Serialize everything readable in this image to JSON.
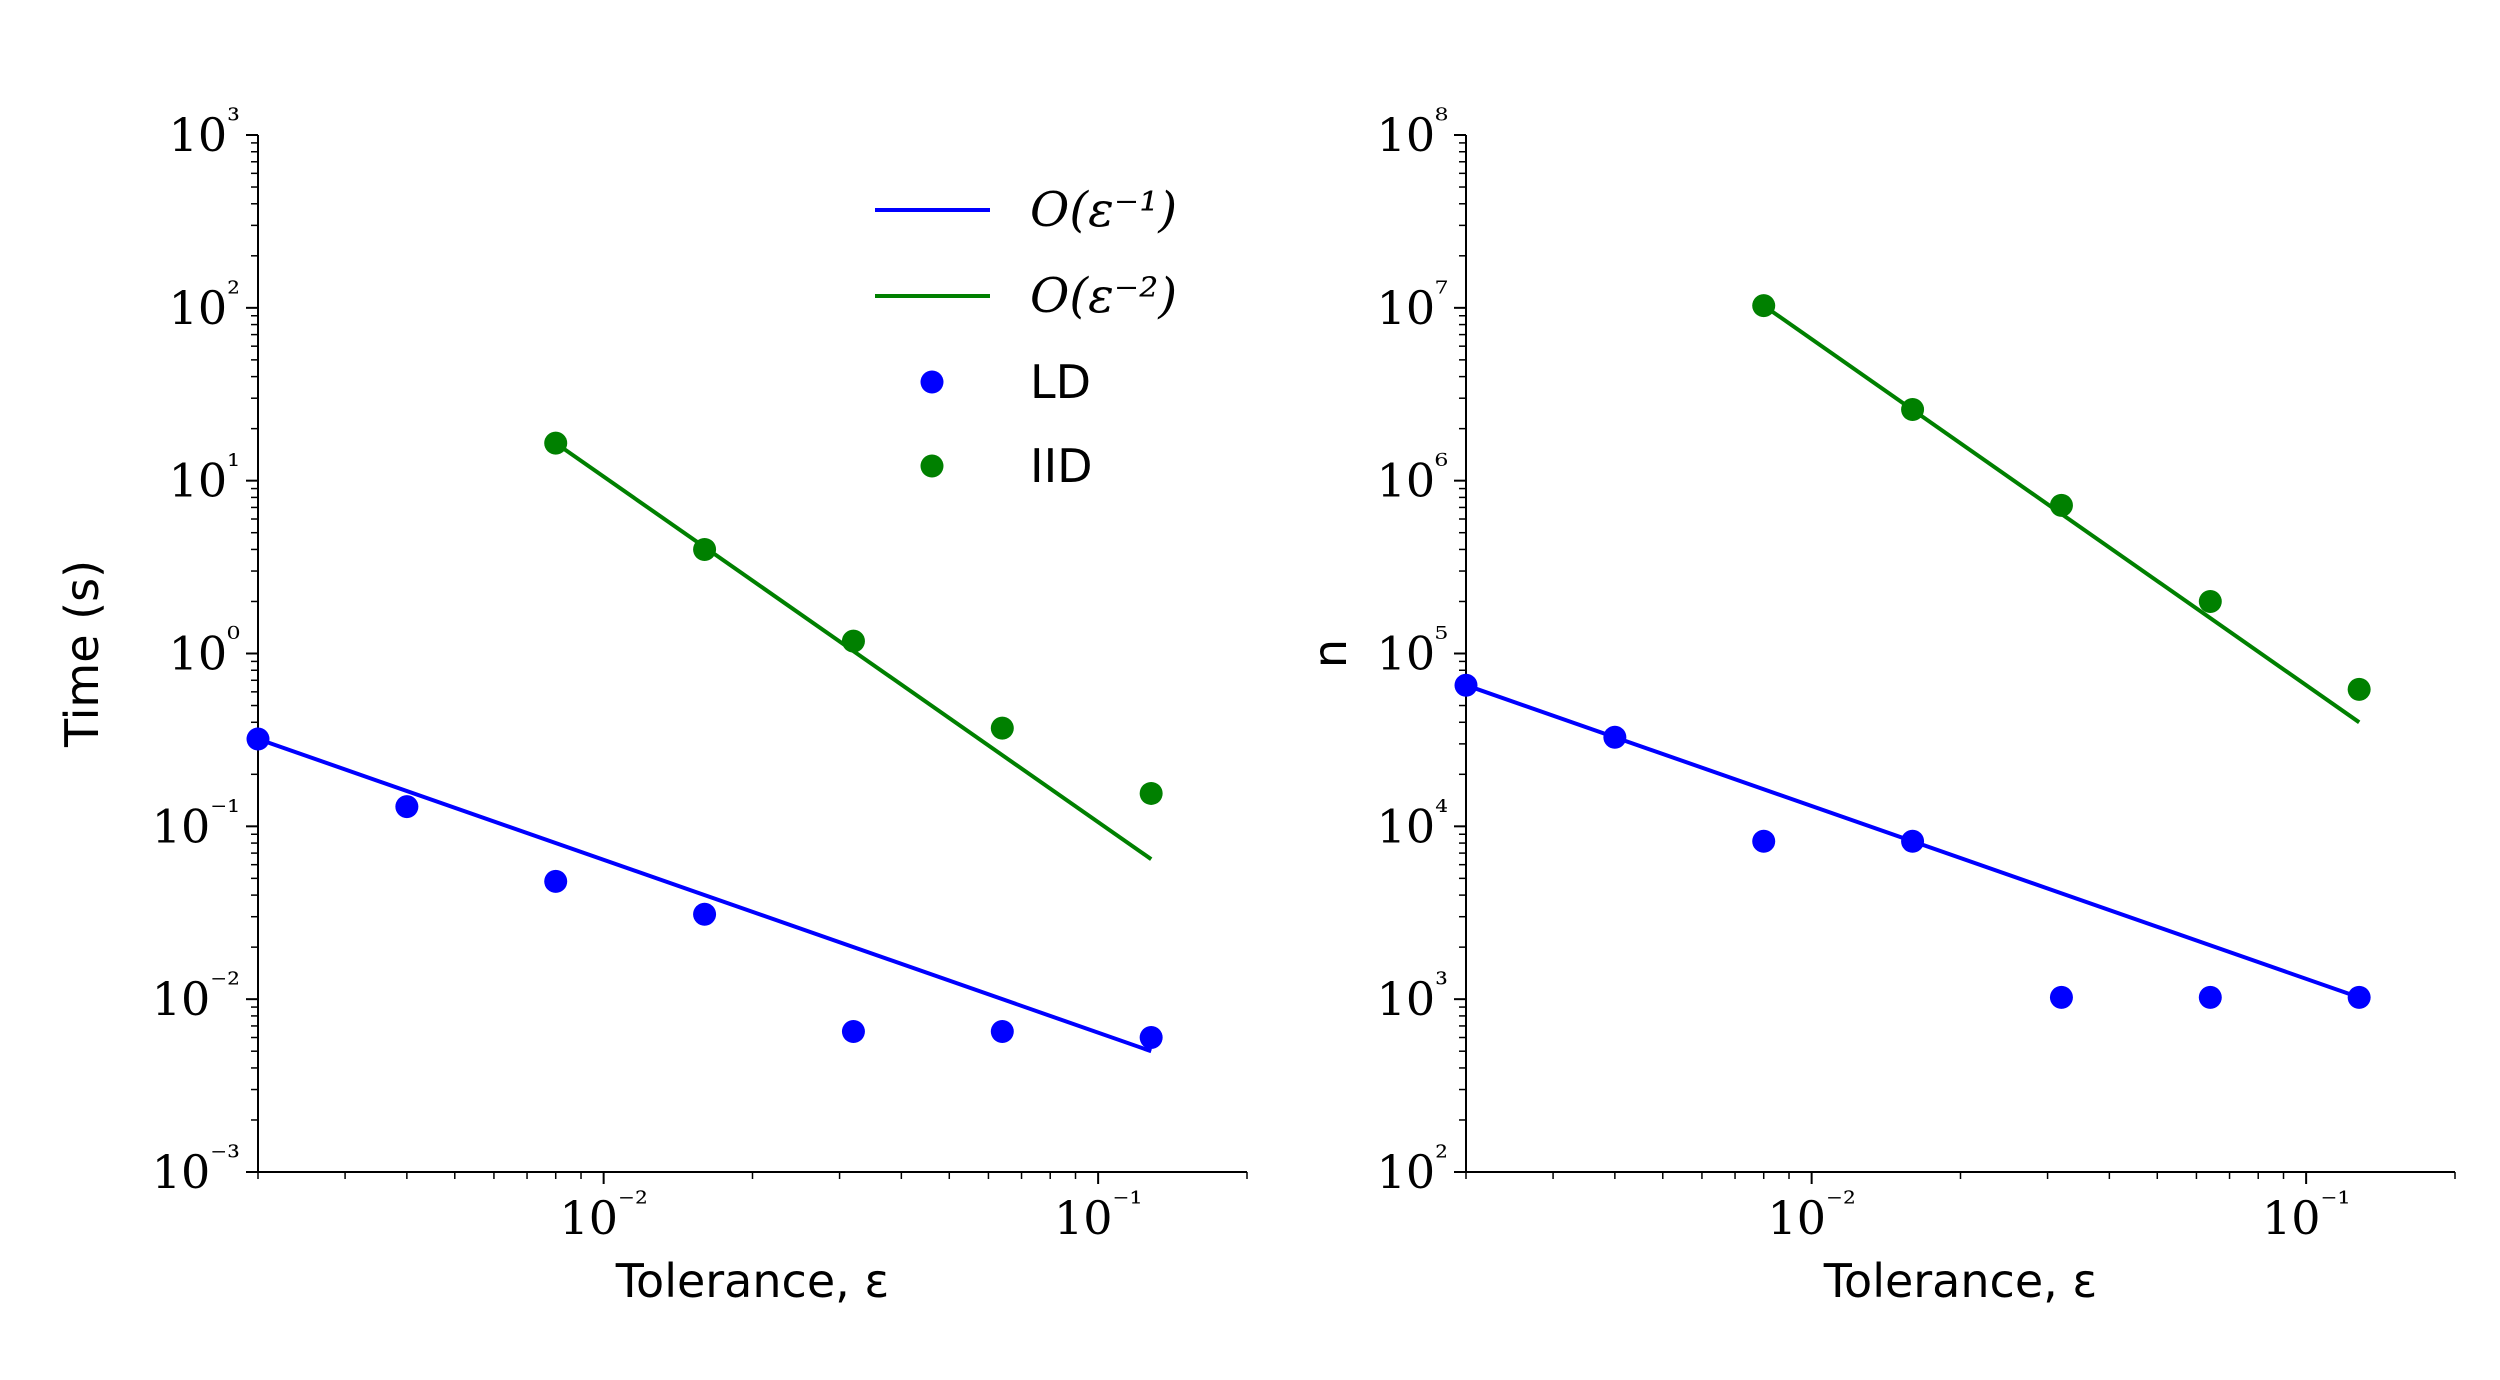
{
  "colors": {
    "ld": "#0000ff",
    "iid": "#008000",
    "axis": "#000000"
  },
  "legend": {
    "placement": "top-right of left panel",
    "entries": [
      {
        "kind": "line",
        "color": "#0000ff",
        "label": "O(ε⁻¹)"
      },
      {
        "kind": "line",
        "color": "#008000",
        "label": "O(ε⁻²)"
      },
      {
        "kind": "marker",
        "color": "#0000ff",
        "label": "LD"
      },
      {
        "kind": "marker",
        "color": "#008000",
        "label": "IID"
      }
    ]
  },
  "chart_data": [
    {
      "type": "scatter",
      "xscale": "log",
      "yscale": "log",
      "xlabel": "Tolerance, ε",
      "ylabel": "Time (s)",
      "xlim": [
        0.002,
        0.2
      ],
      "ylim": [
        0.001,
        1000
      ],
      "xticks": [
        {
          "value": 0.01,
          "label": "10⁻²"
        },
        {
          "value": 0.1,
          "label": "10⁻¹"
        }
      ],
      "yticks": [
        {
          "value": 0.001,
          "label": "10⁻³"
        },
        {
          "value": 0.01,
          "label": "10⁻²"
        },
        {
          "value": 0.1,
          "label": "10⁻¹"
        },
        {
          "value": 1,
          "label": "10⁰"
        },
        {
          "value": 10,
          "label": "10¹"
        },
        {
          "value": 100,
          "label": "10²"
        },
        {
          "value": 1000,
          "label": "10³"
        }
      ],
      "grid": false,
      "series": [
        {
          "name": "LD",
          "kind": "marker",
          "color": "#0000ff",
          "x": [
            0.002,
            0.004,
            0.008,
            0.016,
            0.032,
            0.064,
            0.128
          ],
          "y": [
            0.32,
            0.13,
            0.048,
            0.031,
            0.0065,
            0.0065,
            0.006
          ]
        },
        {
          "name": "IID",
          "kind": "marker",
          "color": "#008000",
          "x": [
            0.008,
            0.016,
            0.032,
            0.064,
            0.128
          ],
          "y": [
            16.5,
            4.0,
            1.18,
            0.37,
            0.155
          ]
        },
        {
          "name": "O(ε⁻¹)",
          "kind": "line",
          "color": "#0000ff",
          "x": [
            0.002,
            0.128
          ],
          "y": [
            0.32,
            0.005
          ]
        },
        {
          "name": "O(ε⁻²)",
          "kind": "line",
          "color": "#008000",
          "x": [
            0.008,
            0.128
          ],
          "y": [
            16.5,
            0.0645
          ]
        }
      ]
    },
    {
      "type": "scatter",
      "xscale": "log",
      "yscale": "log",
      "xlabel": "Tolerance, ε",
      "ylabel": "n",
      "xlim": [
        0.002,
        0.2
      ],
      "ylim": [
        100,
        100000000
      ],
      "xticks": [
        {
          "value": 0.01,
          "label": "10⁻²"
        },
        {
          "value": 0.1,
          "label": "10⁻¹"
        }
      ],
      "yticks": [
        {
          "value": 100,
          "label": "10²"
        },
        {
          "value": 1000,
          "label": "10³"
        },
        {
          "value": 10000,
          "label": "10⁴"
        },
        {
          "value": 100000,
          "label": "10⁵"
        },
        {
          "value": 1000000,
          "label": "10⁶"
        },
        {
          "value": 10000000,
          "label": "10⁷"
        },
        {
          "value": 100000000,
          "label": "10⁸"
        }
      ],
      "grid": false,
      "series": [
        {
          "name": "LD",
          "kind": "marker",
          "color": "#0000ff",
          "x": [
            0.002,
            0.004,
            0.008,
            0.016,
            0.032,
            0.064,
            0.128
          ],
          "y": [
            65536,
            32768,
            8192,
            8192,
            1024,
            1024,
            1024
          ]
        },
        {
          "name": "IID",
          "kind": "marker",
          "color": "#008000",
          "x": [
            0.008,
            0.016,
            0.032,
            0.064,
            0.128
          ],
          "y": [
            10300000,
            2580000,
            720000,
            200000,
            62000
          ]
        },
        {
          "name": "O(ε⁻¹)",
          "kind": "line",
          "color": "#0000ff",
          "x": [
            0.002,
            0.128
          ],
          "y": [
            65536,
            1024
          ]
        },
        {
          "name": "O(ε⁻²)",
          "kind": "line",
          "color": "#008000",
          "x": [
            0.008,
            0.128
          ],
          "y": [
            10300000,
            40000
          ]
        }
      ]
    }
  ]
}
